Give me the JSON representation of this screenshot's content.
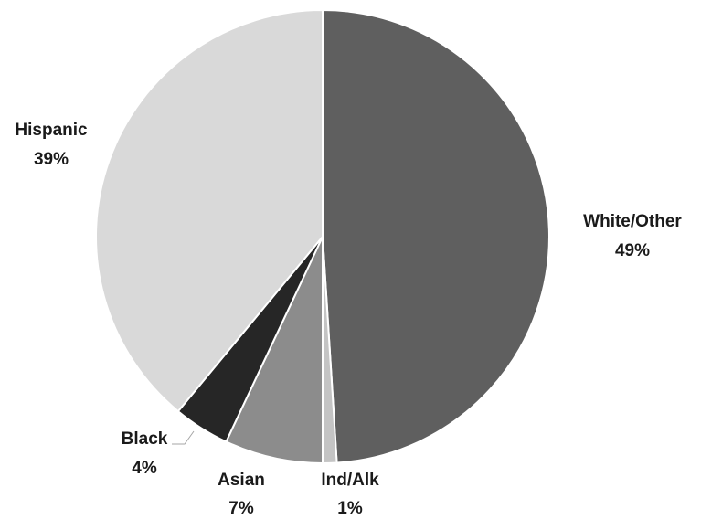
{
  "chart_data": {
    "type": "pie",
    "start_angle_deg": 0,
    "direction": "clockwise",
    "slices": [
      {
        "label": "White/Other",
        "value": 49,
        "display": "49%",
        "color": "#5f5f5f"
      },
      {
        "label": "Ind/Alk",
        "value": 1,
        "display": "1%",
        "color": "#c4c4c4"
      },
      {
        "label": "Asian",
        "value": 7,
        "display": "7%",
        "color": "#8c8c8c"
      },
      {
        "label": "Black",
        "value": 4,
        "display": "4%",
        "color": "#262626"
      },
      {
        "label": "Hispanic",
        "value": 39,
        "display": "39%",
        "color": "#d9d9d9"
      }
    ]
  }
}
